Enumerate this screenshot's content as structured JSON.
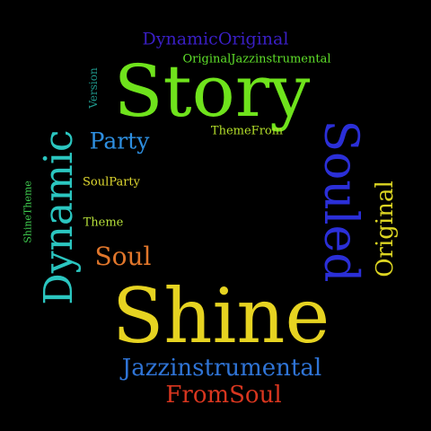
{
  "words": {
    "dynamic_original": "DynamicOriginal",
    "original_jazz": "OriginalJazzinstrumental",
    "story": "Story",
    "version": "Version",
    "party": "Party",
    "theme_from": "ThemeFrom",
    "dynamic": "Dynamic",
    "souled": "Souled",
    "original": "Original",
    "soul_party": "SoulParty",
    "shine_theme": "ShineTheme",
    "theme": "Theme",
    "soul": "Soul",
    "shine": "Shine",
    "jazzinstrumental": "Jazzinstrumental",
    "from_soul": "FromSoul"
  },
  "colors": {
    "background": "#000000",
    "dynamic_original": "#3a1fc6",
    "original_jazz": "#5fe02a",
    "story": "#6fe31c",
    "version": "#1f9a8e",
    "party": "#2e8fe0",
    "theme_from": "#b5e02a",
    "dynamic": "#2bc6c0",
    "souled": "#2b2fd8",
    "original": "#dcd522",
    "soul_party": "#e0d930",
    "shine_theme": "#3fcb4f",
    "theme": "#b6e03a",
    "soul": "#e0762b",
    "shine": "#e6d321",
    "jazzinstrumental": "#2f74d6",
    "from_soul": "#d8361f"
  }
}
